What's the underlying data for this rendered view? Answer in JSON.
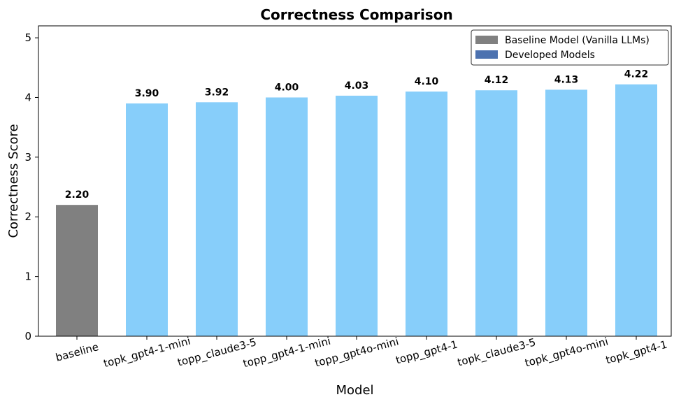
{
  "chart_data": {
    "type": "bar",
    "title": "Correctness Comparison",
    "xlabel": "Model",
    "ylabel": "Correctness Score",
    "ylim": [
      0,
      5.2
    ],
    "yticks": [
      0,
      1,
      2,
      3,
      4,
      5
    ],
    "categories": [
      "baseline",
      "topk_gpt4-1-mini",
      "topp_claude3-5",
      "topp_gpt4-1-mini",
      "topp_gpt4o-mini",
      "topp_gpt4-1",
      "topk_claude3-5",
      "topk_gpt4o-mini",
      "topk_gpt4-1"
    ],
    "values": [
      2.2,
      3.9,
      3.92,
      4.0,
      4.03,
      4.1,
      4.12,
      4.13,
      4.22
    ],
    "value_labels": [
      "2.20",
      "3.90",
      "3.92",
      "4.00",
      "4.03",
      "4.10",
      "4.12",
      "4.13",
      "4.22"
    ],
    "bar_colors": [
      "#808080",
      "#87cefa",
      "#87cefa",
      "#87cefa",
      "#87cefa",
      "#87cefa",
      "#87cefa",
      "#87cefa",
      "#87cefa"
    ],
    "legend": {
      "placement": "top-right",
      "entries": [
        {
          "label": "Baseline Model (Vanilla LLMs)",
          "color": "#808080"
        },
        {
          "label": "Developed Models",
          "color": "#4c72b0"
        }
      ]
    },
    "grid": false,
    "xtick_rotation_deg": -15
  }
}
